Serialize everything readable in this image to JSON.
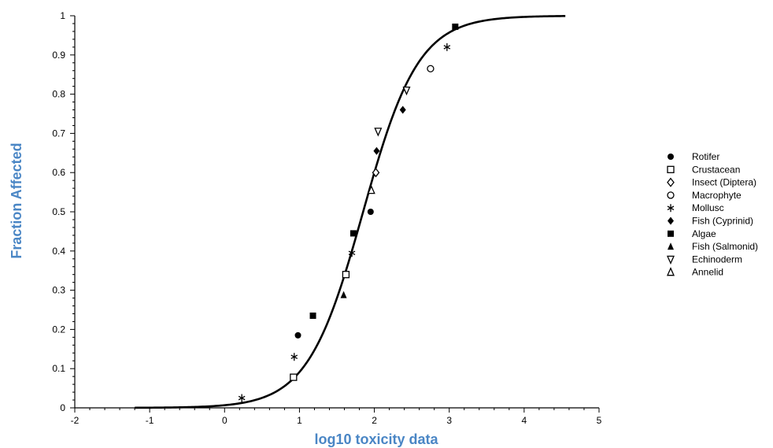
{
  "chart_data": {
    "type": "scatter",
    "title": "",
    "xlabel": "log10 toxicity data",
    "ylabel": "Fraction Affected",
    "xlim": [
      -2,
      5
    ],
    "ylim": [
      0,
      1
    ],
    "x_ticks": [
      "-2",
      "-1",
      "0",
      "1",
      "2",
      "3",
      "4",
      "5"
    ],
    "y_ticks": [
      "0",
      "0.1",
      "0.2",
      "0.3",
      "0.4",
      "0.5",
      "0.6",
      "0.7",
      "0.8",
      "0.9",
      "1"
    ],
    "grid": false,
    "legend_position": "right",
    "fitted_curve": {
      "type": "line",
      "model": "logistic",
      "x_range": [
        -1.2,
        4.55
      ],
      "center": 1.85,
      "scale": 0.37
    },
    "series": [
      {
        "name": "Rotifer",
        "marker": "circle-filled",
        "points": [
          [
            0.98,
            0.185
          ],
          [
            1.95,
            0.5
          ]
        ]
      },
      {
        "name": "Crustacean",
        "marker": "square-open",
        "points": [
          [
            0.92,
            0.078
          ],
          [
            1.62,
            0.34
          ]
        ]
      },
      {
        "name": "Insect (Diptera)",
        "marker": "diamond-open",
        "points": [
          [
            2.02,
            0.6
          ]
        ]
      },
      {
        "name": "Macrophyte",
        "marker": "circle-open",
        "points": [
          [
            2.75,
            0.865
          ]
        ]
      },
      {
        "name": "Mollusc",
        "marker": "asterisk",
        "points": [
          [
            0.23,
            0.025
          ],
          [
            0.93,
            0.13
          ],
          [
            1.7,
            0.395
          ],
          [
            2.97,
            0.92
          ]
        ]
      },
      {
        "name": "Fish (Cyprinid)",
        "marker": "diamond-filled",
        "points": [
          [
            2.03,
            0.655
          ],
          [
            2.38,
            0.76
          ]
        ]
      },
      {
        "name": "Algae",
        "marker": "square-filled",
        "points": [
          [
            1.18,
            0.235
          ],
          [
            1.72,
            0.445
          ],
          [
            3.08,
            0.972
          ]
        ]
      },
      {
        "name": "Fish (Salmonid)",
        "marker": "triangle-filled",
        "points": [
          [
            1.59,
            0.288
          ]
        ]
      },
      {
        "name": "Echinoderm",
        "marker": "triangle-down-open",
        "points": [
          [
            2.05,
            0.705
          ],
          [
            2.43,
            0.81
          ]
        ]
      },
      {
        "name": "Annelid",
        "marker": "triangle-open",
        "points": [
          [
            1.96,
            0.555
          ]
        ]
      }
    ]
  }
}
